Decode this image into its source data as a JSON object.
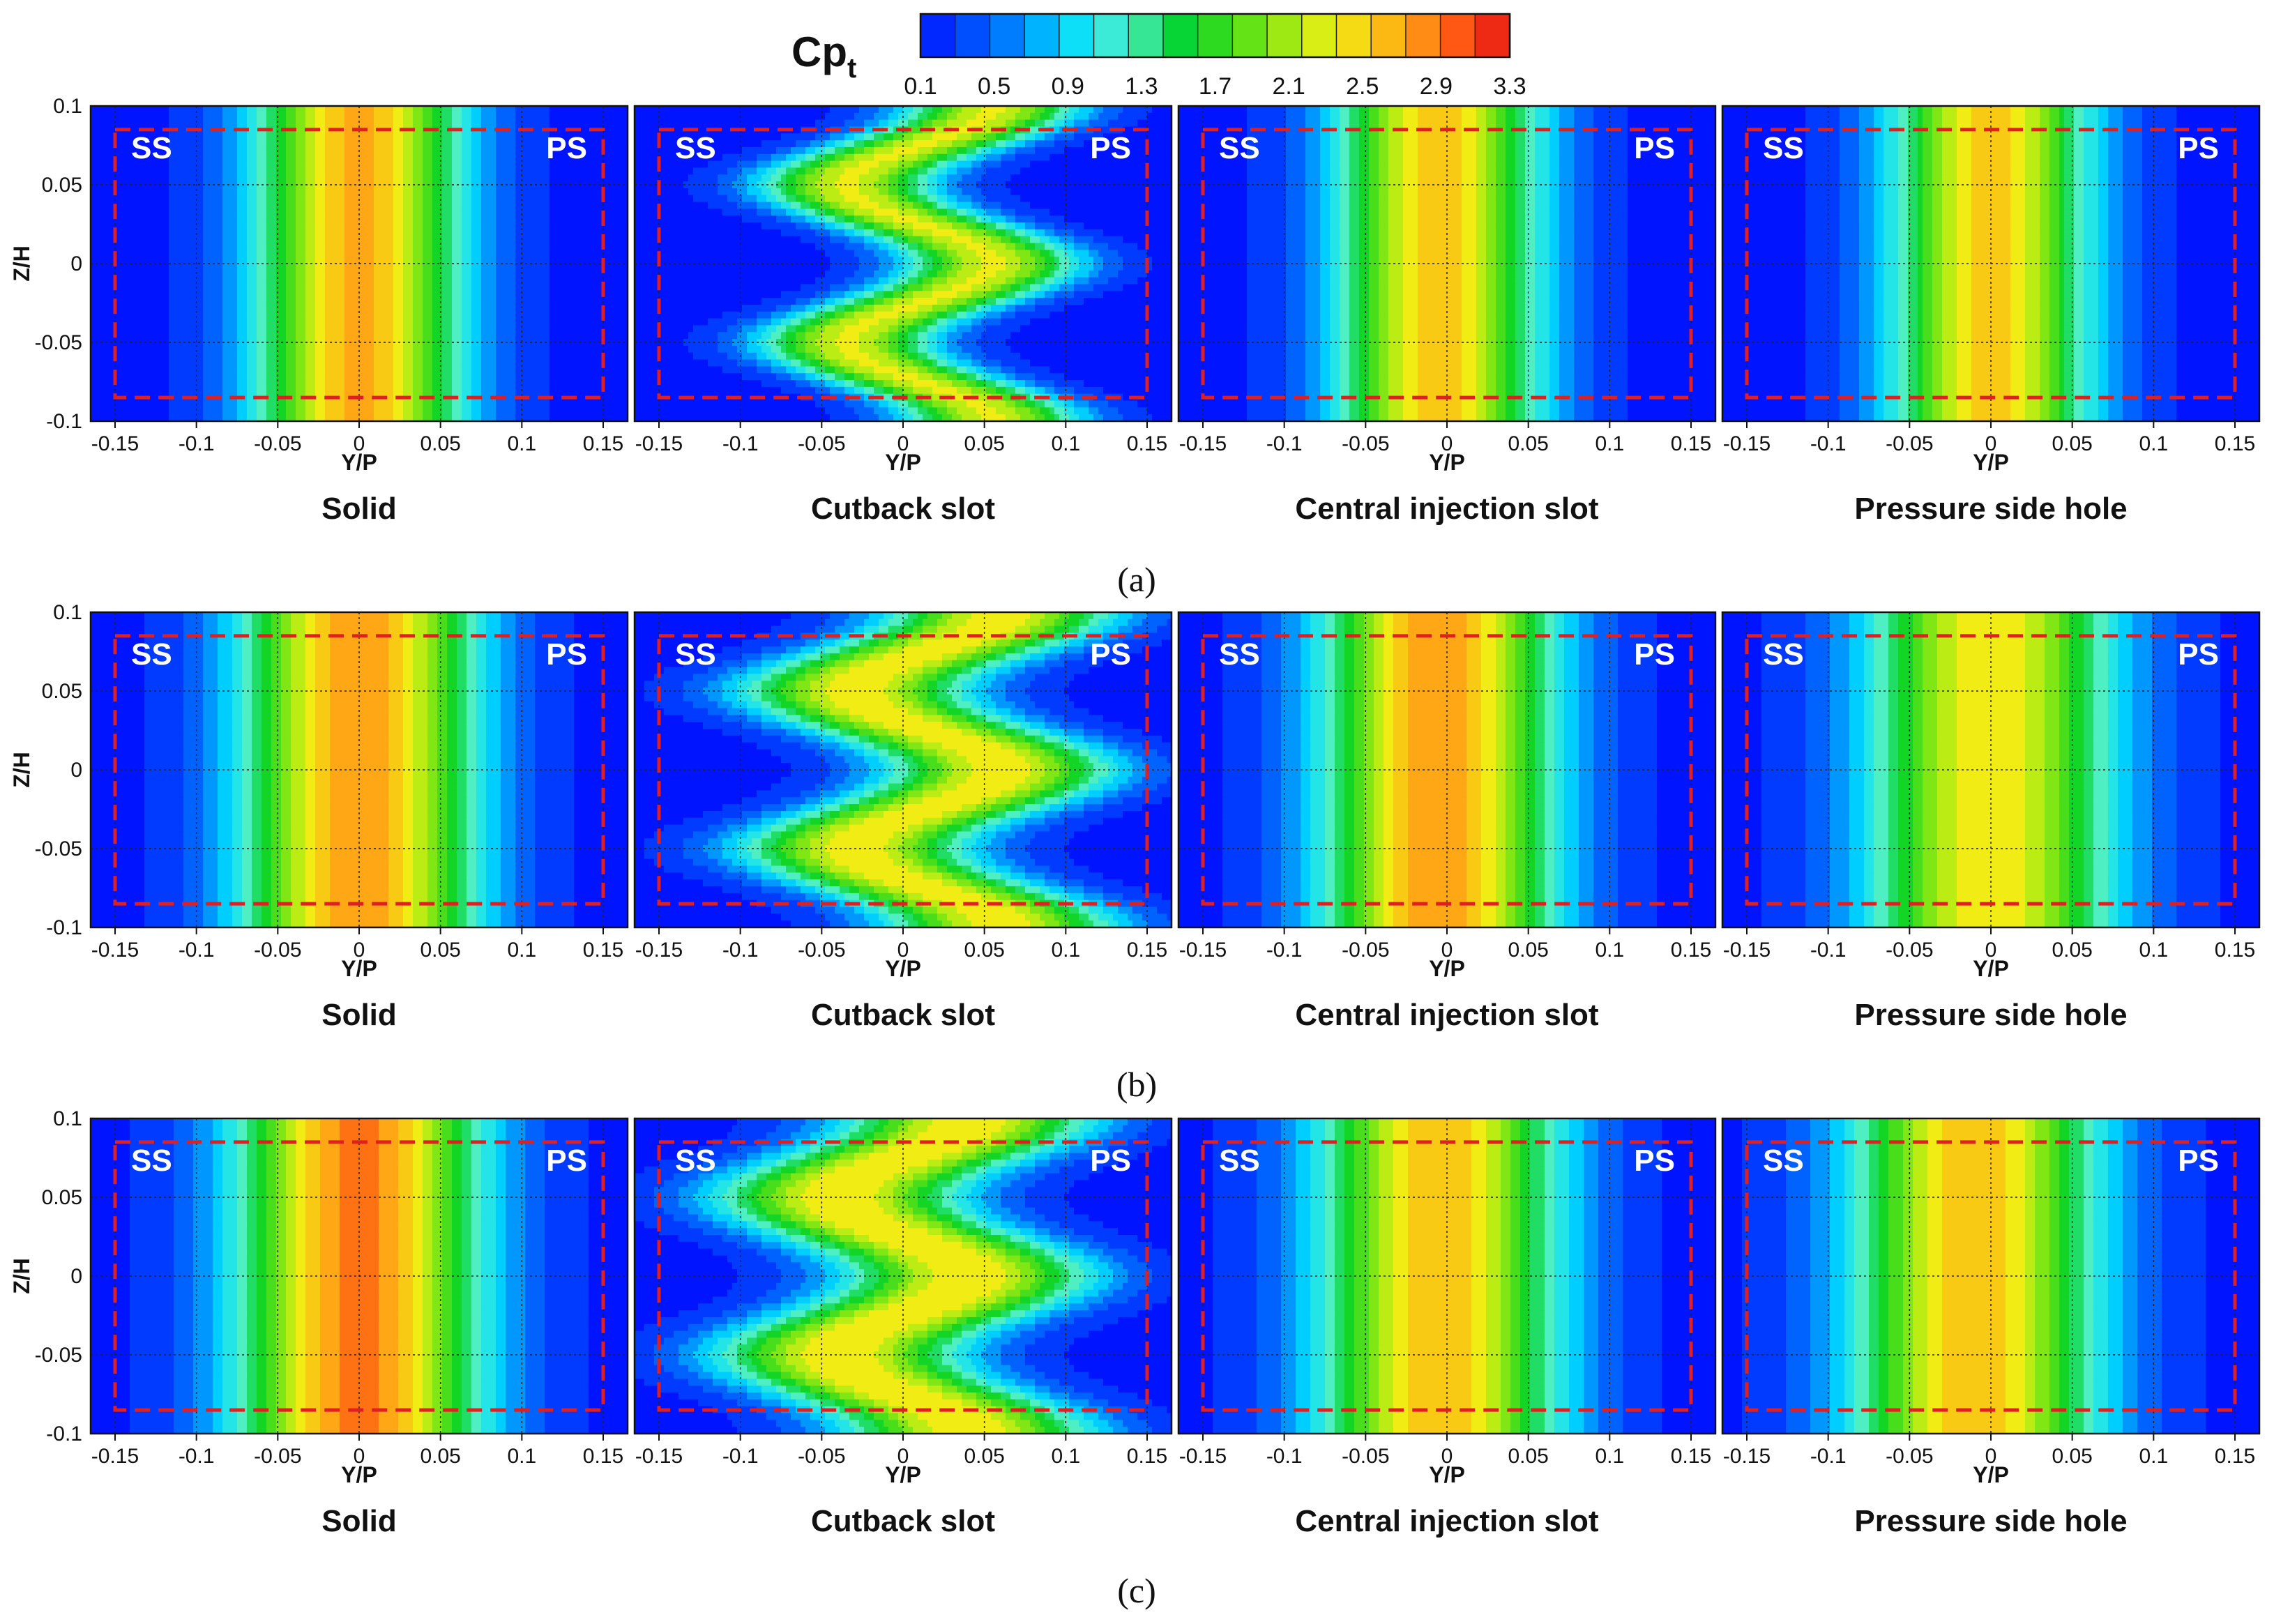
{
  "colorbar": {
    "label_main": "Cp",
    "label_sub": "t",
    "min": 0.1,
    "max": 3.3,
    "ticks": [
      "0.1",
      "0.5",
      "0.9",
      "1.3",
      "1.7",
      "2.1",
      "2.5",
      "2.9",
      "3.3"
    ],
    "levels": 17
  },
  "axes": {
    "xlabel": "Y/P",
    "ylabel": "Z/H",
    "xlim": [
      -0.165,
      0.165
    ],
    "ylim": [
      -0.1,
      0.1
    ],
    "xticks": [
      "-0.15",
      "-0.1",
      "-0.05",
      "0",
      "0.05",
      "0.1",
      "0.15"
    ],
    "yticks": [
      "0.1",
      "0.05",
      "0",
      "-0.05",
      "-0.1"
    ],
    "grid": true
  },
  "panel_titles": [
    "Solid",
    "Cutback slot",
    "Central injection slot",
    "Pressure side hole"
  ],
  "corner_labels": {
    "left": "SS",
    "right": "PS"
  },
  "row_labels": [
    "(a)",
    "(b)",
    "(c)"
  ],
  "highlight_box": {
    "y_range": [
      -0.15,
      0.15
    ],
    "z_range": [
      -0.085,
      0.085
    ],
    "color": "#e02020"
  },
  "chart_data": [
    {
      "type": "heatmap",
      "row": "(a)",
      "title": "Solid",
      "variable": "Cpt",
      "peak_y": 0.0,
      "peak_cpt": 2.7,
      "spread": 0.058,
      "amplitude_y": 0.0,
      "waves_z": 0
    },
    {
      "type": "heatmap",
      "row": "(a)",
      "title": "Cutback slot",
      "variable": "Cpt",
      "peak_y": 0.01,
      "peak_cpt": 2.3,
      "spread": 0.05,
      "amplitude_y": 0.045,
      "waves_z": 3
    },
    {
      "type": "heatmap",
      "row": "(a)",
      "title": "Central injection slot",
      "variable": "Cpt",
      "peak_y": -0.005,
      "peak_cpt": 2.55,
      "spread": 0.058,
      "amplitude_y": 0.0,
      "waves_z": 0
    },
    {
      "type": "heatmap",
      "row": "(a)",
      "title": "Pressure side hole",
      "variable": "Cpt",
      "peak_y": 0.0,
      "peak_cpt": 2.55,
      "spread": 0.056,
      "amplitude_y": 0.0,
      "waves_z": 0
    },
    {
      "type": "heatmap",
      "row": "(b)",
      "title": "Solid",
      "variable": "Cpt",
      "peak_y": 0.0,
      "peak_cpt": 2.8,
      "spread": 0.065,
      "amplitude_y": 0.0,
      "waves_z": 0
    },
    {
      "type": "heatmap",
      "row": "(b)",
      "title": "Cutback slot",
      "variable": "Cpt",
      "peak_y": 0.015,
      "peak_cpt": 2.4,
      "spread": 0.065,
      "amplitude_y": 0.045,
      "waves_z": 3
    },
    {
      "type": "heatmap",
      "row": "(b)",
      "title": "Central injection slot",
      "variable": "Cpt",
      "peak_y": -0.005,
      "peak_cpt": 2.8,
      "spread": 0.065,
      "amplitude_y": 0.0,
      "waves_z": 0
    },
    {
      "type": "heatmap",
      "row": "(b)",
      "title": "Pressure side hole",
      "variable": "Cpt",
      "peak_y": 0.0,
      "peak_cpt": 2.45,
      "spread": 0.07,
      "amplitude_y": 0.0,
      "waves_z": 0
    },
    {
      "type": "heatmap",
      "row": "(c)",
      "title": "Solid",
      "variable": "Cpt",
      "peak_y": 0.0,
      "peak_cpt": 2.9,
      "spread": 0.068,
      "amplitude_y": 0.0,
      "waves_z": 0
    },
    {
      "type": "heatmap",
      "row": "(c)",
      "title": "Cutback slot",
      "variable": "Cpt",
      "peak_y": 0.0,
      "peak_cpt": 2.45,
      "spread": 0.07,
      "amplitude_y": 0.04,
      "waves_z": 3
    },
    {
      "type": "heatmap",
      "row": "(c)",
      "title": "Central injection slot",
      "variable": "Cpt",
      "peak_y": -0.005,
      "peak_cpt": 2.6,
      "spread": 0.068,
      "amplitude_y": 0.0,
      "waves_z": 0
    },
    {
      "type": "heatmap",
      "row": "(c)",
      "title": "Pressure side hole",
      "variable": "Cpt",
      "peak_y": -0.01,
      "peak_cpt": 2.6,
      "spread": 0.07,
      "amplitude_y": 0.0,
      "waves_z": 0
    }
  ]
}
